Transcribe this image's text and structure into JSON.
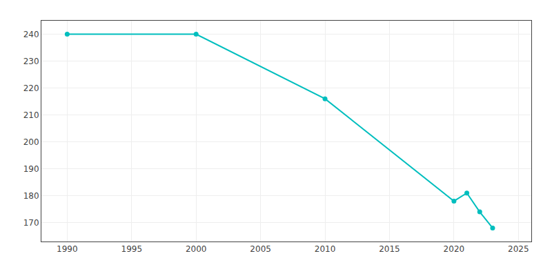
{
  "chart_data": {
    "type": "line",
    "x": [
      1990,
      2000,
      2010,
      2020,
      2021,
      2022,
      2023
    ],
    "values": [
      240,
      240,
      216,
      178,
      181,
      174,
      168
    ],
    "color": "#00BEBE",
    "marker": "circle",
    "xlim": [
      1988,
      2026
    ],
    "xticks": [
      1990,
      1995,
      2000,
      2005,
      2010,
      2015,
      2020,
      2025
    ],
    "ylim": [
      163,
      245
    ],
    "yticks": [
      170,
      180,
      190,
      200,
      210,
      220,
      230,
      240
    ],
    "grid": true
  }
}
